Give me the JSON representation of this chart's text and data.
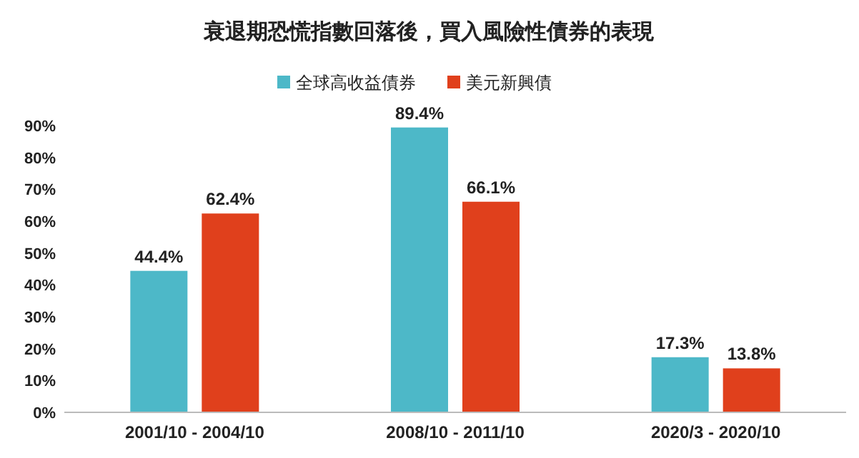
{
  "chart_data": {
    "type": "bar",
    "title": "衰退期恐慌指數回落後，買入風險性債券的表現",
    "categories": [
      "2001/10 - 2004/10",
      "2008/10 - 2011/10",
      "2020/3 - 2020/10"
    ],
    "series": [
      {
        "name": "全球高收益債券",
        "color": "#4db8c8",
        "values": [
          44.4,
          89.4,
          17.3
        ],
        "value_labels": [
          "44.4%",
          "89.4%",
          "17.3%"
        ]
      },
      {
        "name": "美元新興債",
        "color": "#e0401c",
        "values": [
          62.4,
          66.1,
          13.8
        ],
        "value_labels": [
          "62.4%",
          "66.1%",
          "13.8%"
        ]
      }
    ],
    "ylim": [
      0,
      90
    ],
    "yticks": [
      {
        "value": 0,
        "label": "0%"
      },
      {
        "value": 10,
        "label": "10%"
      },
      {
        "value": 20,
        "label": "20%"
      },
      {
        "value": 30,
        "label": "30%"
      },
      {
        "value": 40,
        "label": "40%"
      },
      {
        "value": 50,
        "label": "50%"
      },
      {
        "value": 60,
        "label": "60%"
      },
      {
        "value": 70,
        "label": "70%"
      },
      {
        "value": 80,
        "label": "80%"
      },
      {
        "value": 90,
        "label": "90%"
      }
    ],
    "legend": "top",
    "grid": false
  }
}
